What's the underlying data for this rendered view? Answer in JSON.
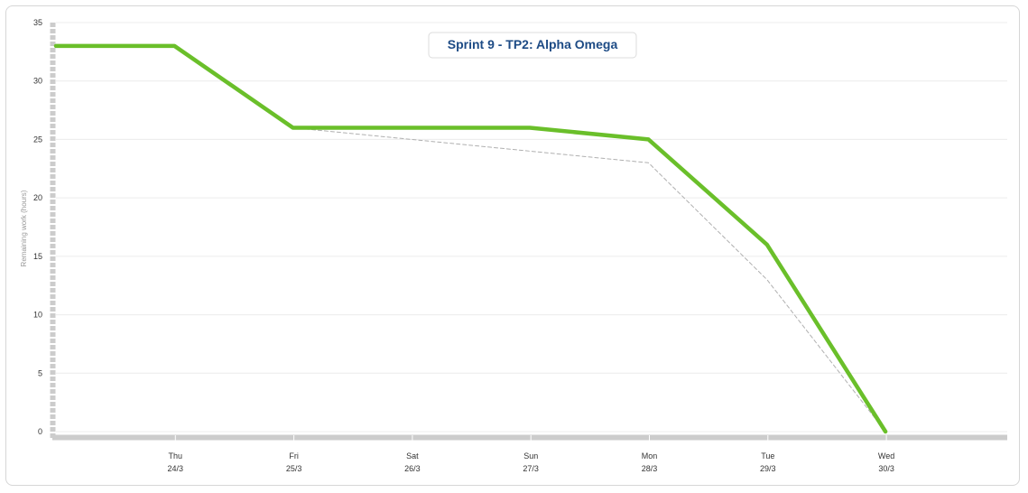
{
  "chart_data": {
    "type": "line",
    "title": "Sprint 9 - TP2: Alpha Omega",
    "ylabel": "Remaining work (hours)",
    "xlabel": "",
    "ylim": [
      0,
      35
    ],
    "yticks": [
      0,
      5,
      10,
      15,
      20,
      25,
      30,
      35
    ],
    "categories": [
      {
        "day": "Thu",
        "date": "24/3"
      },
      {
        "day": "Fri",
        "date": "25/3"
      },
      {
        "day": "Sat",
        "date": "26/3"
      },
      {
        "day": "Sun",
        "date": "27/3"
      },
      {
        "day": "Mon",
        "date": "28/3"
      },
      {
        "day": "Tue",
        "date": "29/3"
      },
      {
        "day": "Wed",
        "date": "30/3"
      }
    ],
    "series": [
      {
        "style": "solid",
        "color": "#6abf2a",
        "points": [
          {
            "x": "23/3",
            "y": 33
          },
          {
            "x": "24/3",
            "y": 33
          },
          {
            "x": "25/3",
            "y": 26
          },
          {
            "x": "26/3",
            "y": 26
          },
          {
            "x": "27/3",
            "y": 26
          },
          {
            "x": "28/3",
            "y": 25
          },
          {
            "x": "29/3",
            "y": 16
          },
          {
            "x": "30/3",
            "y": 0
          }
        ]
      },
      {
        "style": "dashed",
        "color": "#b0b0b0",
        "points": [
          {
            "x": "25/3",
            "y": 26
          },
          {
            "x": "26/3",
            "y": 25
          },
          {
            "x": "27/3",
            "y": 24
          },
          {
            "x": "28/3",
            "y": 23
          },
          {
            "x": "29/3",
            "y": 13
          },
          {
            "x": "30/3",
            "y": 0
          }
        ]
      }
    ],
    "grid": true,
    "legend": "none"
  }
}
